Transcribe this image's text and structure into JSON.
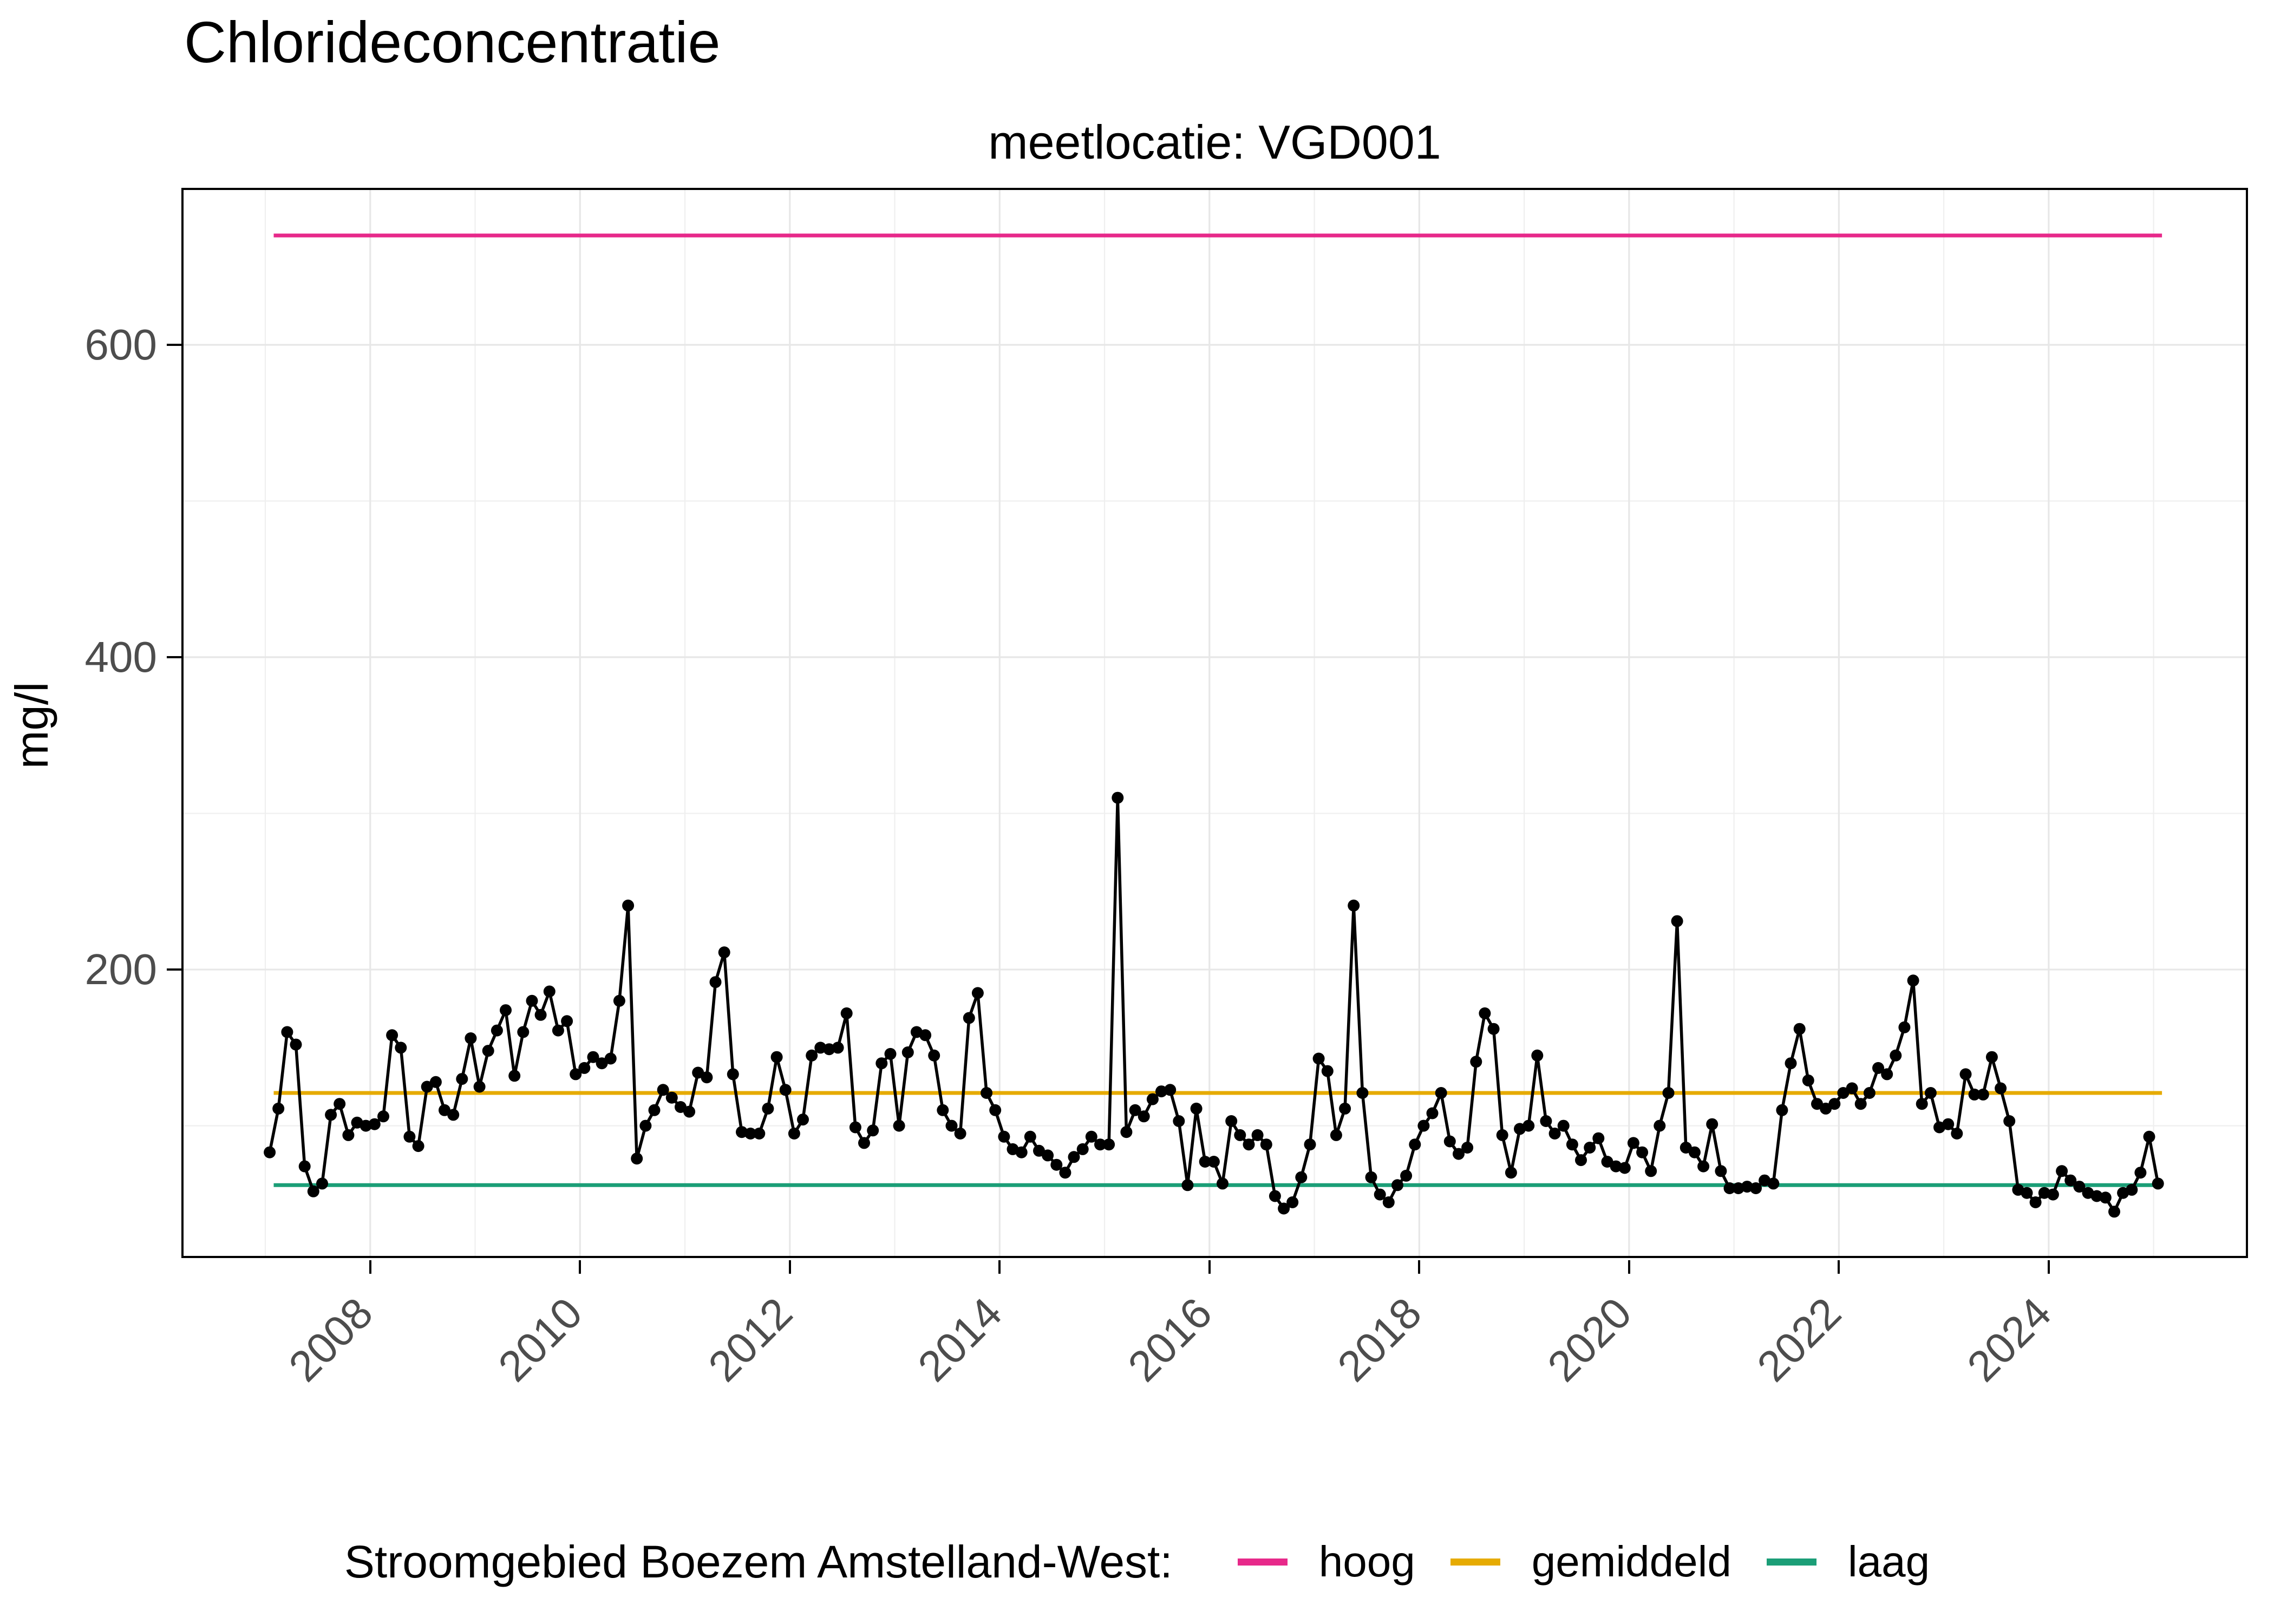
{
  "title": "Chlorideconcentratie",
  "facet": {
    "label": "meetlocatie: VGD001"
  },
  "y_axis": {
    "title": "mg/l",
    "tick_labels": [
      "600",
      "400",
      "200"
    ],
    "tick_values": [
      600,
      400,
      200
    ]
  },
  "x_axis": {
    "tick_labels": [
      "2008",
      "2010",
      "2012",
      "2014",
      "2016",
      "2018",
      "2020",
      "2022",
      "2024"
    ],
    "tick_values": [
      2008,
      2010,
      2012,
      2014,
      2016,
      2018,
      2020,
      2022,
      2024
    ]
  },
  "legend": {
    "title": "Stroomgebied Boezem Amstelland-West:",
    "items": [
      {
        "label": "hoog",
        "color": "#E7298A"
      },
      {
        "label": "gemiddeld",
        "color": "#E6AB02"
      },
      {
        "label": "laag",
        "color": "#1B9E77"
      }
    ]
  },
  "colors": {
    "grid_major": "#E7E7E7",
    "grid_minor": "#EFEFEF",
    "panel_border": "#000000",
    "series": "#000000",
    "axis_text": "#4D4D4D"
  },
  "chart_data": {
    "type": "line",
    "title": "Chlorideconcentratie",
    "subtitle": "meetlocatie: VGD001",
    "xlabel": "",
    "ylabel": "mg/l",
    "x_range": [
      2006.2,
      2025.9
    ],
    "y_range": [
      15.3,
      700.5
    ],
    "x_major": [
      2008,
      2010,
      2012,
      2014,
      2016,
      2018,
      2020,
      2022,
      2024
    ],
    "x_minor": [
      2007,
      2009,
      2011,
      2013,
      2015,
      2017,
      2019,
      2021,
      2023,
      2025
    ],
    "y_major": [
      200,
      400,
      600
    ],
    "y_minor": [
      100,
      300,
      500,
      700
    ],
    "grid": true,
    "legend_position": "bottom",
    "reference_lines": [
      {
        "name": "hoog",
        "value": 670,
        "color": "#E7298A"
      },
      {
        "name": "gemiddeld",
        "value": 121,
        "color": "#E6AB02"
      },
      {
        "name": "laag",
        "value": 62,
        "color": "#1B9E77"
      }
    ],
    "ref_x_range": [
      2007.08,
      2025.08
    ],
    "series_name": "chlorideconcentratie VGD001 (mg/l)",
    "monthly": {
      "2007": [
        83,
        111,
        160,
        152,
        74,
        58,
        63,
        107,
        114,
        94,
        102,
        100
      ],
      "2008": [
        101,
        106,
        158,
        150,
        93,
        87,
        125,
        128,
        110,
        107,
        130,
        156
      ],
      "2009": [
        125,
        148,
        161,
        174,
        132,
        160,
        180,
        171,
        186,
        161,
        167,
        133
      ],
      "2010": [
        137,
        144,
        140,
        143,
        180,
        241,
        79,
        100,
        110,
        123,
        118,
        112
      ],
      "2011": [
        109,
        134,
        131,
        192,
        211,
        133,
        96,
        95,
        95,
        111,
        144,
        123
      ],
      "2012": [
        95,
        104,
        145,
        150,
        149,
        150,
        172,
        99,
        89,
        97,
        140,
        146
      ],
      "2013": [
        100,
        147,
        160,
        158,
        145,
        110,
        100,
        95,
        169,
        185,
        121,
        110
      ],
      "2014": [
        93,
        85,
        83,
        93,
        84,
        81,
        75,
        70,
        80,
        85,
        93,
        88
      ],
      "2015": [
        88,
        310,
        96,
        110,
        106,
        117,
        122,
        123,
        103,
        62,
        111,
        77
      ],
      "2016": [
        77,
        63,
        103,
        94,
        88,
        94,
        88,
        55,
        47,
        51,
        67,
        88
      ],
      "2017": [
        143,
        135,
        94,
        111,
        241,
        121,
        67,
        56,
        51,
        62,
        68,
        88
      ],
      "2018": [
        100,
        108,
        121,
        90,
        82,
        86,
        141,
        172,
        162,
        94,
        70,
        98
      ],
      "2019": [
        100,
        145,
        103,
        95,
        100,
        88,
        78,
        86,
        92,
        77,
        74,
        73
      ],
      "2020": [
        89,
        83,
        71,
        100,
        121,
        231,
        86,
        83,
        74,
        101,
        71,
        60
      ],
      "2021": [
        60,
        61,
        60,
        65,
        63,
        110,
        140,
        162,
        129,
        114,
        111,
        114
      ],
      "2022": [
        121,
        124,
        114,
        121,
        137,
        133,
        145,
        163,
        193,
        114,
        121,
        99
      ],
      "2023": [
        101,
        95,
        133,
        120,
        120,
        144,
        124,
        103,
        59,
        57,
        51,
        57
      ],
      "2024": [
        56,
        71,
        65,
        61,
        57,
        55,
        54,
        45,
        57,
        59,
        70,
        93
      ],
      "2025": [
        63
      ]
    }
  }
}
